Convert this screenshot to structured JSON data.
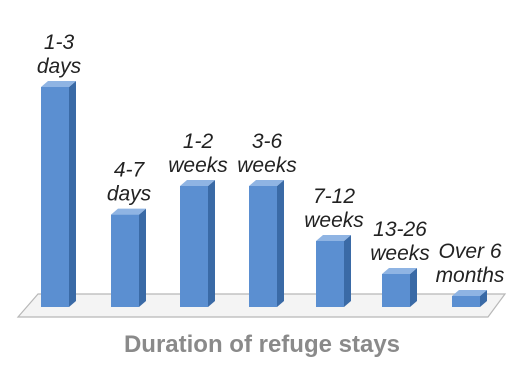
{
  "chart_data": {
    "type": "bar",
    "title": "Duration of refuge stays",
    "categories": [
      "1-3 days",
      "4-7 days",
      "1-2 weeks",
      "3-6 weeks",
      "7-12 weeks",
      "13-26 weeks",
      "Over 6 months"
    ],
    "category_lines": [
      [
        "1-3",
        "days"
      ],
      [
        "4-7",
        "days"
      ],
      [
        "1-2",
        "weeks"
      ],
      [
        "3-6",
        "weeks"
      ],
      [
        "7-12",
        "weeks"
      ],
      [
        "13-26",
        "weeks"
      ],
      [
        "Over 6",
        "months"
      ]
    ],
    "values": [
      100,
      42,
      55,
      55,
      30,
      15,
      5
    ],
    "xlabel": "",
    "ylabel": "",
    "ylim": [
      0,
      100
    ],
    "grid": false,
    "legend": "none",
    "colors": {
      "bar_front": "#5b8fd1",
      "bar_side": "#3a6aa6",
      "bar_top": "#8fb4e3",
      "floor": "#f4f4f4",
      "floor_edge": "#b8b8b8",
      "title": "#8a8a8a",
      "label": "#222222"
    }
  }
}
